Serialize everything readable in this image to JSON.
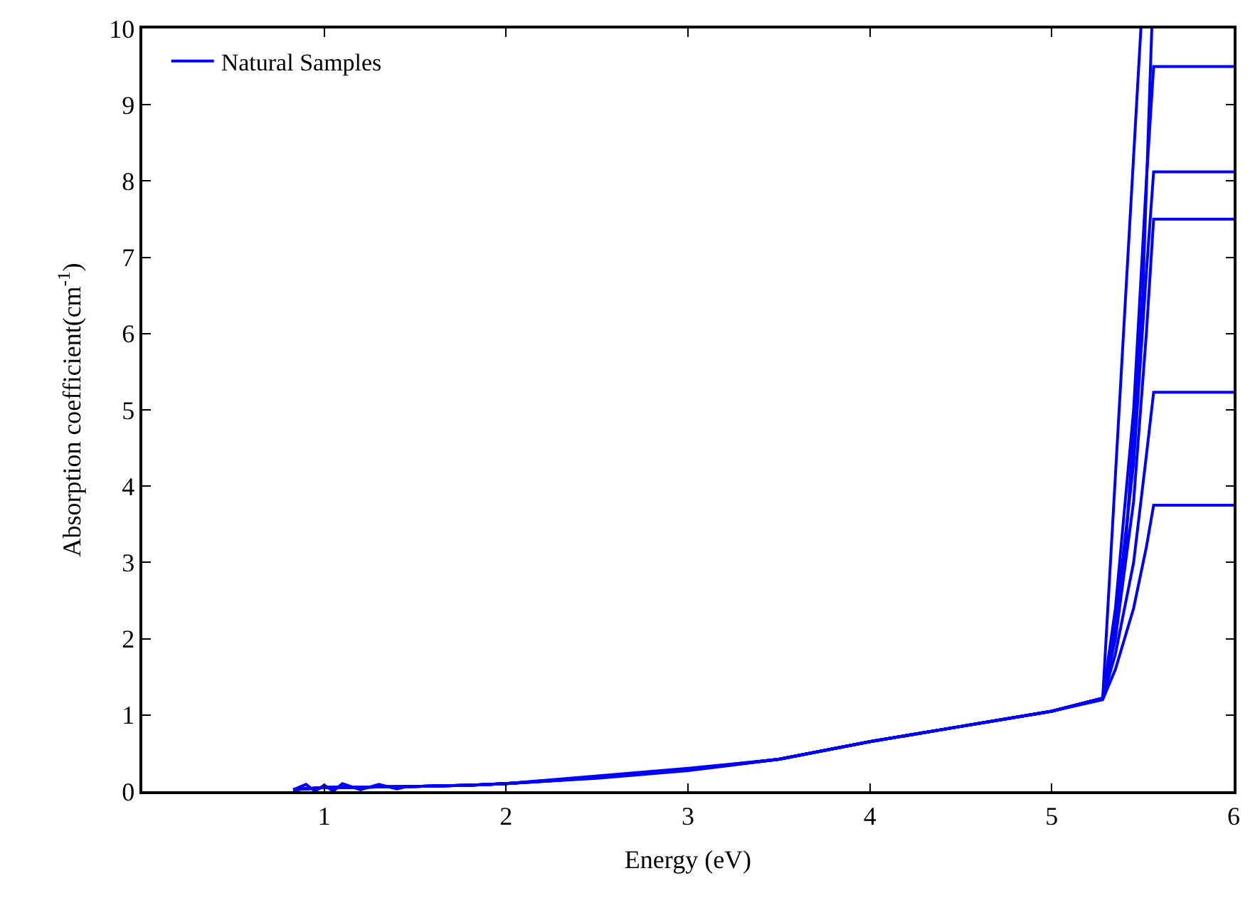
{
  "chart_data": {
    "type": "line",
    "xlabel": "Energy (eV)",
    "ylabel": "Absorption coefficient(cm$^{-1}$)",
    "xlim": [
      0,
      6
    ],
    "xticks": [
      {
        "value": 0,
        "label": null
      },
      1,
      2,
      3,
      4,
      5,
      6
    ],
    "ylim": [
      0,
      10
    ],
    "yticks": [
      0,
      1,
      2,
      3,
      4,
      5,
      6,
      7,
      8,
      9,
      10
    ],
    "legend": "top left",
    "line_style": "solid",
    "series": [
      {
        "name": "Natural Samples",
        "color": "#0000ff",
        "x": [
          0.83,
          0.9,
          0.95,
          1.0,
          1.05,
          1.1,
          1.2,
          1.3,
          1.4,
          1.45,
          1.6,
          1.8,
          2.0,
          2.5,
          3.0,
          3.5,
          4.0,
          4.5,
          5.0,
          5.28,
          5.49
        ],
        "values": [
          0.02,
          0.09,
          0.0,
          0.08,
          0.0,
          0.1,
          0.02,
          0.09,
          0.03,
          0.06,
          0.07,
          0.08,
          0.1,
          0.18,
          0.28,
          0.42,
          0.65,
          0.85,
          1.05,
          1.22,
          10
        ]
      },
      {
        "color": "#0000ff",
        "x": [
          0.83,
          1.0,
          1.45,
          1.8,
          2.0,
          2.5,
          3.0,
          3.5,
          4.0,
          4.5,
          5.0,
          5.28,
          5.35,
          5.45,
          5.52,
          5.56,
          6
        ],
        "values": [
          0.02,
          0.05,
          0.06,
          0.08,
          0.1,
          0.2,
          0.3,
          0.42,
          0.65,
          0.85,
          1.05,
          1.2,
          1.6,
          2.4,
          3.2,
          3.75,
          3.75
        ]
      },
      {
        "color": "#0000ff",
        "x": [
          0.83,
          1.0,
          1.45,
          1.8,
          2.0,
          2.5,
          3.0,
          3.5,
          4.0,
          4.5,
          5.0,
          5.28,
          5.35,
          5.45,
          5.52,
          5.56,
          6
        ],
        "values": [
          0.02,
          0.05,
          0.06,
          0.08,
          0.1,
          0.17,
          0.27,
          0.42,
          0.65,
          0.85,
          1.05,
          1.22,
          1.8,
          3.0,
          4.4,
          5.23,
          5.23
        ]
      },
      {
        "color": "#0000ff",
        "x": [
          0.83,
          1.0,
          1.45,
          1.8,
          2.0,
          2.5,
          3.0,
          3.5,
          4.0,
          4.5,
          5.0,
          5.28,
          5.35,
          5.45,
          5.52,
          5.56,
          6
        ],
        "values": [
          0.02,
          0.05,
          0.06,
          0.08,
          0.1,
          0.19,
          0.29,
          0.42,
          0.65,
          0.85,
          1.05,
          1.22,
          2.0,
          3.8,
          6.0,
          7.5,
          7.5
        ]
      },
      {
        "color": "#0000ff",
        "x": [
          0.83,
          1.0,
          1.45,
          1.8,
          2.0,
          2.5,
          3.0,
          3.5,
          4.0,
          4.5,
          5.0,
          5.28,
          5.35,
          5.45,
          5.52,
          5.56,
          6
        ],
        "values": [
          0.02,
          0.05,
          0.06,
          0.08,
          0.1,
          0.18,
          0.28,
          0.42,
          0.65,
          0.85,
          1.05,
          1.22,
          2.2,
          4.3,
          6.8,
          8.12,
          8.12
        ]
      },
      {
        "color": "#0000ff",
        "x": [
          0.83,
          1.0,
          1.45,
          1.8,
          2.0,
          2.5,
          3.0,
          3.5,
          4.0,
          4.5,
          5.0,
          5.28,
          5.35,
          5.45,
          5.52,
          5.56,
          6
        ],
        "values": [
          0.02,
          0.05,
          0.06,
          0.08,
          0.1,
          0.18,
          0.28,
          0.42,
          0.65,
          0.85,
          1.05,
          1.22,
          2.4,
          5.0,
          8.0,
          9.5,
          9.5
        ]
      },
      {
        "color": "#0000ff",
        "x": [
          0.83,
          1.0,
          1.45,
          1.8,
          2.0,
          2.5,
          3.0,
          3.5,
          4.0,
          4.5,
          5.0,
          5.28,
          5.4,
          5.5,
          5.55
        ],
        "values": [
          0.02,
          0.05,
          0.06,
          0.08,
          0.1,
          0.18,
          0.28,
          0.42,
          0.65,
          0.85,
          1.05,
          1.22,
          3.0,
          6.5,
          10
        ]
      }
    ]
  }
}
